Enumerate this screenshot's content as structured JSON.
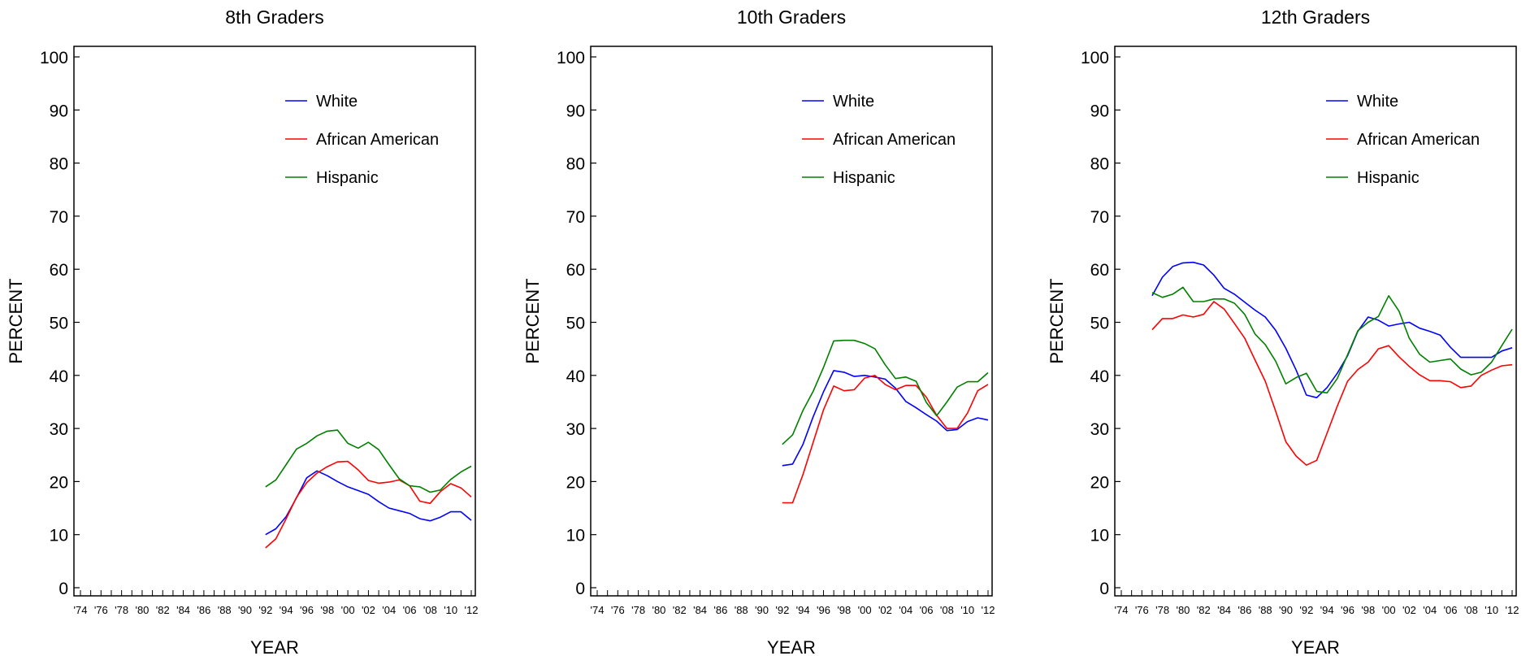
{
  "chart_data": [
    {
      "type": "line",
      "title": "8th Graders",
      "xlabel": "YEAR",
      "ylabel": "PERCENT",
      "ylim": [
        0,
        100
      ],
      "yticks": [
        0,
        10,
        20,
        30,
        40,
        50,
        60,
        70,
        80,
        90,
        100
      ],
      "xlim": [
        1974,
        2012
      ],
      "xtick_labels": [
        "'74",
        "'76",
        "'78",
        "'80",
        "'82",
        "'84",
        "'86",
        "'88",
        "'90",
        "'92",
        "'94",
        "'96",
        "'98",
        "'00",
        "'02",
        "'04",
        "'06",
        "'08",
        "'10",
        "'12"
      ],
      "legend": "upper-right",
      "grid": false,
      "series": [
        {
          "name": "White",
          "color": "#0000ff",
          "x": [
            1992,
            1993,
            1994,
            1995,
            1996,
            1997,
            1998,
            1999,
            2000,
            2001,
            2002,
            2003,
            2004,
            2005,
            2006,
            2007,
            2008,
            2009,
            2010,
            2011,
            2012
          ],
          "values": [
            10.0,
            11.1,
            13.4,
            16.9,
            20.7,
            22.0,
            21.1,
            20.0,
            19.0,
            18.3,
            17.6,
            16.2,
            15.0,
            14.5,
            14.0,
            13.0,
            12.6,
            13.3,
            14.3,
            14.3,
            12.7
          ]
        },
        {
          "name": "African American",
          "color": "#ff0000",
          "x": [
            1992,
            1993,
            1994,
            1995,
            1996,
            1997,
            1998,
            1999,
            2000,
            2001,
            2002,
            2003,
            2004,
            2005,
            2006,
            2007,
            2008,
            2009,
            2010,
            2011,
            2012
          ],
          "values": [
            7.5,
            9.2,
            13.0,
            17.0,
            19.8,
            21.6,
            22.8,
            23.7,
            23.8,
            22.2,
            20.2,
            19.7,
            19.9,
            20.3,
            19.2,
            16.3,
            15.9,
            18.1,
            19.6,
            18.8,
            17.1
          ]
        },
        {
          "name": "Hispanic",
          "color": "#008000",
          "x": [
            1992,
            1993,
            1994,
            1995,
            1996,
            1997,
            1998,
            1999,
            2000,
            2001,
            2002,
            2003,
            2004,
            2005,
            2006,
            2007,
            2008,
            2009,
            2010,
            2011,
            2012
          ],
          "values": [
            19.0,
            20.3,
            23.2,
            26.1,
            27.2,
            28.6,
            29.5,
            29.7,
            27.2,
            26.3,
            27.4,
            26.0,
            23.2,
            20.5,
            19.2,
            19.0,
            18.0,
            18.4,
            20.4,
            21.8,
            22.9
          ]
        }
      ]
    },
    {
      "type": "line",
      "title": "10th Graders",
      "xlabel": "YEAR",
      "ylabel": "PERCENT",
      "ylim": [
        0,
        100
      ],
      "yticks": [
        0,
        10,
        20,
        30,
        40,
        50,
        60,
        70,
        80,
        90,
        100
      ],
      "xlim": [
        1974,
        2012
      ],
      "xtick_labels": [
        "'74",
        "'76",
        "'78",
        "'80",
        "'82",
        "'84",
        "'86",
        "'88",
        "'90",
        "'92",
        "'94",
        "'96",
        "'98",
        "'00",
        "'02",
        "'04",
        "'06",
        "'08",
        "'10",
        "'12"
      ],
      "legend": "upper-right",
      "grid": false,
      "series": [
        {
          "name": "White",
          "color": "#0000ff",
          "x": [
            1992,
            1993,
            1994,
            1995,
            1996,
            1997,
            1998,
            1999,
            2000,
            2001,
            2002,
            2003,
            2004,
            2005,
            2006,
            2007,
            2008,
            2009,
            2010,
            2011,
            2012
          ],
          "values": [
            23.0,
            23.3,
            27.0,
            32.2,
            36.9,
            40.9,
            40.6,
            39.8,
            40.0,
            39.7,
            39.3,
            37.6,
            35.1,
            33.9,
            32.6,
            31.4,
            29.6,
            29.8,
            31.3,
            32.0,
            31.6
          ]
        },
        {
          "name": "African American",
          "color": "#ff0000",
          "x": [
            1992,
            1993,
            1994,
            1995,
            1996,
            1997,
            1998,
            1999,
            2000,
            2001,
            2002,
            2003,
            2004,
            2005,
            2006,
            2007,
            2008,
            2009,
            2010,
            2011,
            2012
          ],
          "values": [
            16.0,
            16.0,
            21.3,
            27.4,
            33.5,
            38.0,
            37.1,
            37.3,
            39.5,
            40.0,
            38.3,
            37.3,
            38.1,
            38.1,
            35.9,
            32.5,
            30.0,
            30.0,
            32.9,
            37.1,
            38.3
          ]
        },
        {
          "name": "Hispanic",
          "color": "#008000",
          "x": [
            1992,
            1993,
            1994,
            1995,
            1996,
            1997,
            1998,
            1999,
            2000,
            2001,
            2002,
            2003,
            2004,
            2005,
            2006,
            2007,
            2008,
            2009,
            2010,
            2011,
            2012
          ],
          "values": [
            27.0,
            28.8,
            33.4,
            37.0,
            41.5,
            46.5,
            46.6,
            46.6,
            46.0,
            45.0,
            42.0,
            39.4,
            39.7,
            38.9,
            34.9,
            32.4,
            35.0,
            37.8,
            38.8,
            38.8,
            40.5
          ]
        }
      ]
    },
    {
      "type": "line",
      "title": "12th Graders",
      "xlabel": "YEAR",
      "ylabel": "PERCENT",
      "ylim": [
        0,
        100
      ],
      "yticks": [
        0,
        10,
        20,
        30,
        40,
        50,
        60,
        70,
        80,
        90,
        100
      ],
      "xlim": [
        1974,
        2012
      ],
      "xtick_labels": [
        "'74",
        "'76",
        "'78",
        "'80",
        "'82",
        "'84",
        "'86",
        "'88",
        "'90",
        "'92",
        "'94",
        "'96",
        "'98",
        "'00",
        "'02",
        "'04",
        "'06",
        "'08",
        "'10",
        "'12"
      ],
      "legend": "upper-right",
      "grid": false,
      "series": [
        {
          "name": "White",
          "color": "#0000ff",
          "x": [
            1977,
            1978,
            1979,
            1980,
            1981,
            1982,
            1983,
            1984,
            1985,
            1986,
            1987,
            1988,
            1989,
            1990,
            1991,
            1992,
            1993,
            1994,
            1995,
            1996,
            1997,
            1998,
            1999,
            2000,
            2001,
            2002,
            2003,
            2004,
            2005,
            2006,
            2007,
            2008,
            2009,
            2010,
            2011,
            2012
          ],
          "values": [
            55.0,
            58.5,
            60.5,
            61.2,
            61.3,
            60.8,
            58.9,
            56.4,
            55.3,
            53.8,
            52.3,
            51.0,
            48.5,
            45.1,
            41.0,
            36.3,
            35.8,
            37.7,
            40.4,
            43.7,
            48.3,
            51.0,
            50.4,
            49.3,
            49.7,
            50.0,
            48.9,
            48.3,
            47.6,
            45.3,
            43.4,
            43.4,
            43.4,
            43.4,
            44.6,
            45.2
          ]
        },
        {
          "name": "African American",
          "color": "#ff0000",
          "x": [
            1977,
            1978,
            1979,
            1980,
            1981,
            1982,
            1983,
            1984,
            1985,
            1986,
            1987,
            1988,
            1989,
            1990,
            1991,
            1992,
            1993,
            1994,
            1995,
            1996,
            1997,
            1998,
            1999,
            2000,
            2001,
            2002,
            2003,
            2004,
            2005,
            2006,
            2007,
            2008,
            2009,
            2010,
            2011,
            2012
          ],
          "values": [
            48.6,
            50.7,
            50.7,
            51.4,
            51.0,
            51.5,
            53.9,
            52.5,
            49.8,
            47.0,
            42.9,
            38.9,
            33.3,
            27.5,
            24.8,
            23.1,
            24.0,
            29.1,
            34.2,
            38.9,
            41.1,
            42.5,
            45.0,
            45.6,
            43.5,
            41.7,
            40.1,
            39.0,
            39.0,
            38.8,
            37.7,
            38.0,
            40.0,
            41.0,
            41.8,
            42.0
          ]
        },
        {
          "name": "Hispanic",
          "color": "#008000",
          "x": [
            1977,
            1978,
            1979,
            1980,
            1981,
            1982,
            1983,
            1984,
            1985,
            1986,
            1987,
            1988,
            1989,
            1990,
            1991,
            1992,
            1993,
            1994,
            1995,
            1996,
            1997,
            1998,
            1999,
            2000,
            2001,
            2002,
            2003,
            2004,
            2005,
            2006,
            2007,
            2008,
            2009,
            2010,
            2011,
            2012
          ],
          "values": [
            55.6,
            54.7,
            55.3,
            56.6,
            53.9,
            53.9,
            54.4,
            54.4,
            53.6,
            51.5,
            47.8,
            45.8,
            42.7,
            38.4,
            39.6,
            40.4,
            37.0,
            36.7,
            39.4,
            43.9,
            48.4,
            50.0,
            51.1,
            55.0,
            52.1,
            47.0,
            44.0,
            42.5,
            42.8,
            43.1,
            41.2,
            40.1,
            40.6,
            42.5,
            45.6,
            48.7
          ]
        }
      ]
    }
  ]
}
